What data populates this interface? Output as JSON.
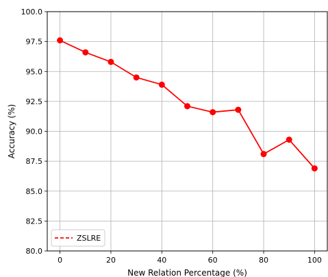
{
  "chart_data": {
    "type": "line",
    "title": "",
    "xlabel": "New Relation Percentage (%)",
    "ylabel": "Accuracy (%)",
    "xlim": [
      -5,
      105
    ],
    "ylim": [
      80.0,
      100.0
    ],
    "xticks": [
      0,
      20,
      40,
      60,
      80,
      100
    ],
    "xtick_labels": [
      "0",
      "20",
      "40",
      "60",
      "80",
      "100"
    ],
    "yticks": [
      80.0,
      82.5,
      85.0,
      87.5,
      90.0,
      92.5,
      95.0,
      97.5,
      100.0
    ],
    "ytick_labels": [
      "80.0",
      "82.5",
      "85.0",
      "87.5",
      "90.0",
      "92.5",
      "95.0",
      "97.5",
      "100.0"
    ],
    "grid": true,
    "legend_position": "bottom-left",
    "series": [
      {
        "name": "ZSLRE",
        "color": "#ff0000",
        "marker": "circle",
        "legend_linestyle": "dashed",
        "x": [
          0,
          10,
          20,
          30,
          40,
          50,
          60,
          70,
          80,
          90,
          100
        ],
        "y": [
          97.6,
          96.6,
          95.8,
          94.5,
          93.9,
          92.1,
          91.6,
          91.8,
          88.1,
          89.3,
          86.9
        ]
      }
    ]
  }
}
